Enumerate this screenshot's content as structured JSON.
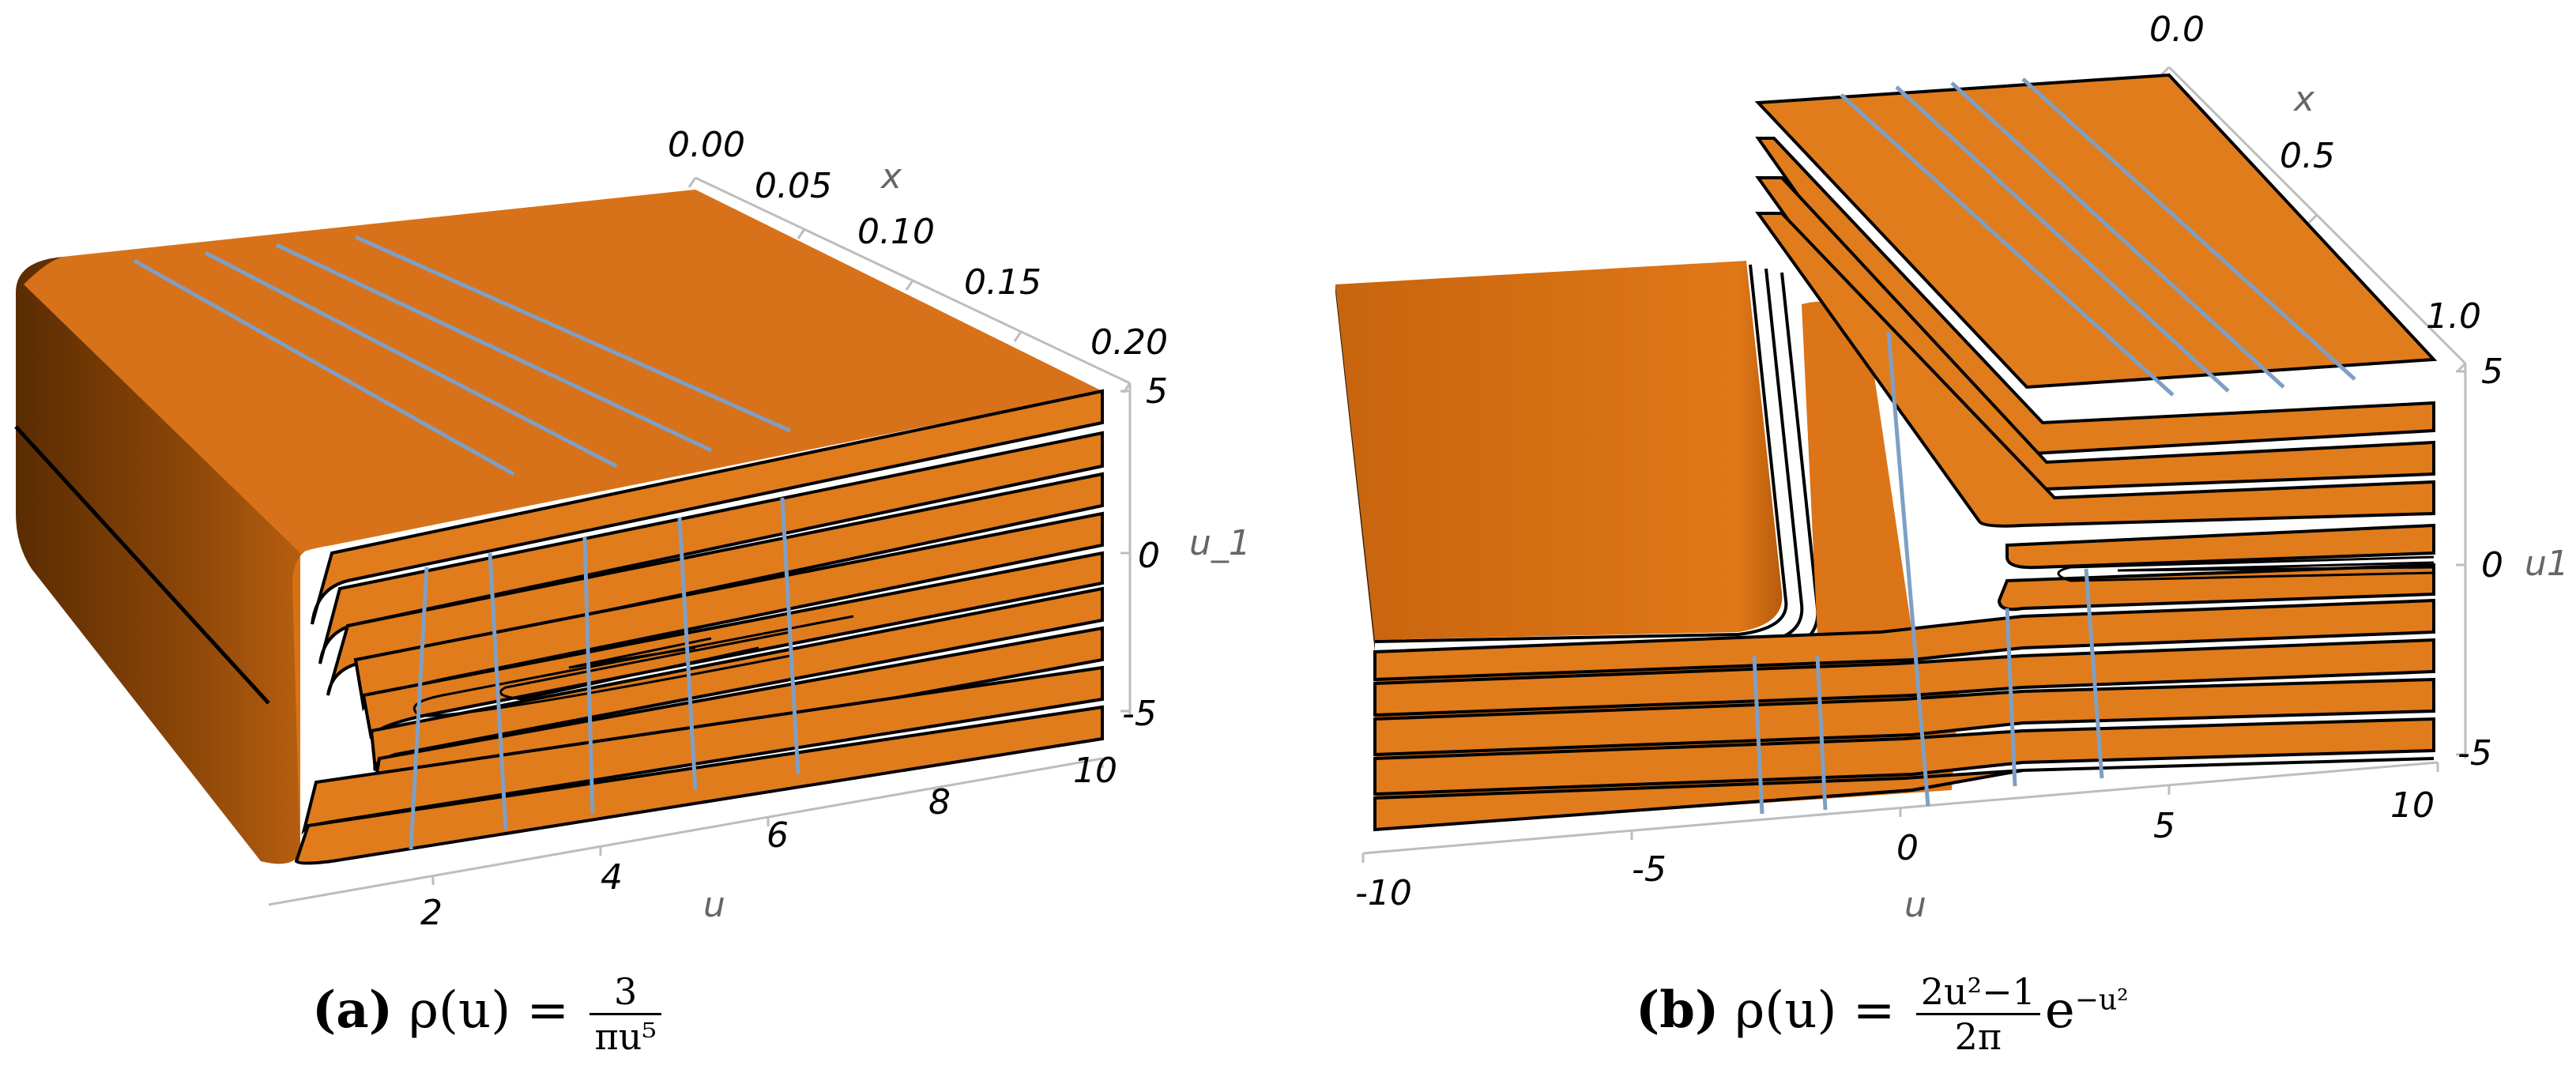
{
  "figure": {
    "panels": [
      {
        "caption_label": "(a)",
        "caption_lhs": "ρ(u) =",
        "caption_frac_num": "3",
        "caption_frac_den": "πu⁵",
        "caption_tail": "",
        "x_label": "x",
        "u_label": "u",
        "z_label": "u_1",
        "x_ticks": [
          "0.00",
          "0.05",
          "0.10",
          "0.15",
          "0.20"
        ],
        "u_ticks": [
          "2",
          "4",
          "6",
          "8",
          "10"
        ],
        "z_ticks": [
          "5",
          "0",
          "-5"
        ]
      },
      {
        "caption_label": "(b)",
        "caption_lhs": "ρ(u) =",
        "caption_frac_num": "2u²−1",
        "caption_frac_den": "2π",
        "caption_tail": "e",
        "caption_tail_sup": "−u²",
        "x_label": "x",
        "u_label": "u",
        "z_label": "u1",
        "x_ticks": [
          "0.0",
          "0.5",
          "1.0"
        ],
        "u_ticks": [
          "-10",
          "-5",
          "0",
          "5",
          "10"
        ],
        "z_ticks": [
          "5",
          "0",
          "-5"
        ]
      }
    ]
  },
  "chart_data": [
    {
      "type": "surface3d",
      "x_axis": {
        "label": "x",
        "range": [
          0.0,
          0.2
        ],
        "ticks": [
          0.0,
          0.05,
          0.1,
          0.15,
          0.2
        ]
      },
      "u_axis": {
        "label": "u",
        "range": [
          0,
          10
        ],
        "ticks": [
          2,
          4,
          6,
          8,
          10
        ]
      },
      "z_axis": {
        "label": "u_1",
        "range": [
          -5,
          5
        ],
        "ticks": [
          5,
          0,
          -5
        ]
      },
      "surface_color": "#e07818",
      "contour_color": "#000000",
      "mesh_line_color": "#7f9fc4",
      "fold": "surface folds back near u ≈ 1, spiral contours narrowing toward u ≈ 5"
    },
    {
      "type": "surface3d",
      "x_axis": {
        "label": "x",
        "range": [
          0.0,
          1.0
        ],
        "ticks": [
          0.0,
          0.5,
          1.0
        ]
      },
      "u_axis": {
        "label": "u",
        "range": [
          -10,
          10
        ],
        "ticks": [
          -10,
          -5,
          0,
          5,
          10
        ]
      },
      "z_axis": {
        "label": "u1",
        "range": [
          -5,
          5
        ],
        "ticks": [
          5,
          0,
          -5
        ]
      },
      "surface_color": "#e07818",
      "contour_color": "#000000",
      "mesh_line_color": "#7f9fc4",
      "fold": "two folded sheets: lower-left block for u < -1, upper-right stack for u > 1, with a ridge near u ≈ 0"
    }
  ]
}
